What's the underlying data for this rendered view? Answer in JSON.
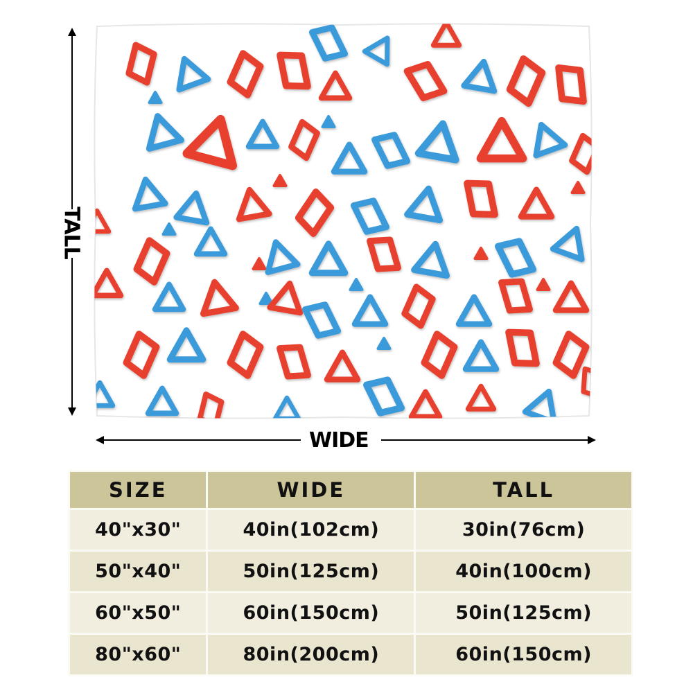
{
  "dimensions": {
    "tall_label": "TALL",
    "wide_label": "WIDE"
  },
  "pattern": {
    "colors": {
      "red": "#e8412f",
      "blue": "#3a9ad9",
      "background": "#ffffff"
    },
    "icon": "red-and-blue-triangle-pattern"
  },
  "size_table": {
    "headers": [
      "SIZE",
      "WIDE",
      "TALL"
    ],
    "rows": [
      [
        "40\"x30\"",
        "40in(102cm)",
        "30in(76cm)"
      ],
      [
        "50\"x40\"",
        "50in(125cm)",
        "40in(100cm)"
      ],
      [
        "60\"x50\"",
        "60in(150cm)",
        "50in(125cm)"
      ],
      [
        "80\"x60\"",
        "80in(200cm)",
        "60in(150cm)"
      ]
    ],
    "header_color": "#cdc59a",
    "row_colors": [
      "#f1eee0",
      "#e9e5cf"
    ]
  }
}
